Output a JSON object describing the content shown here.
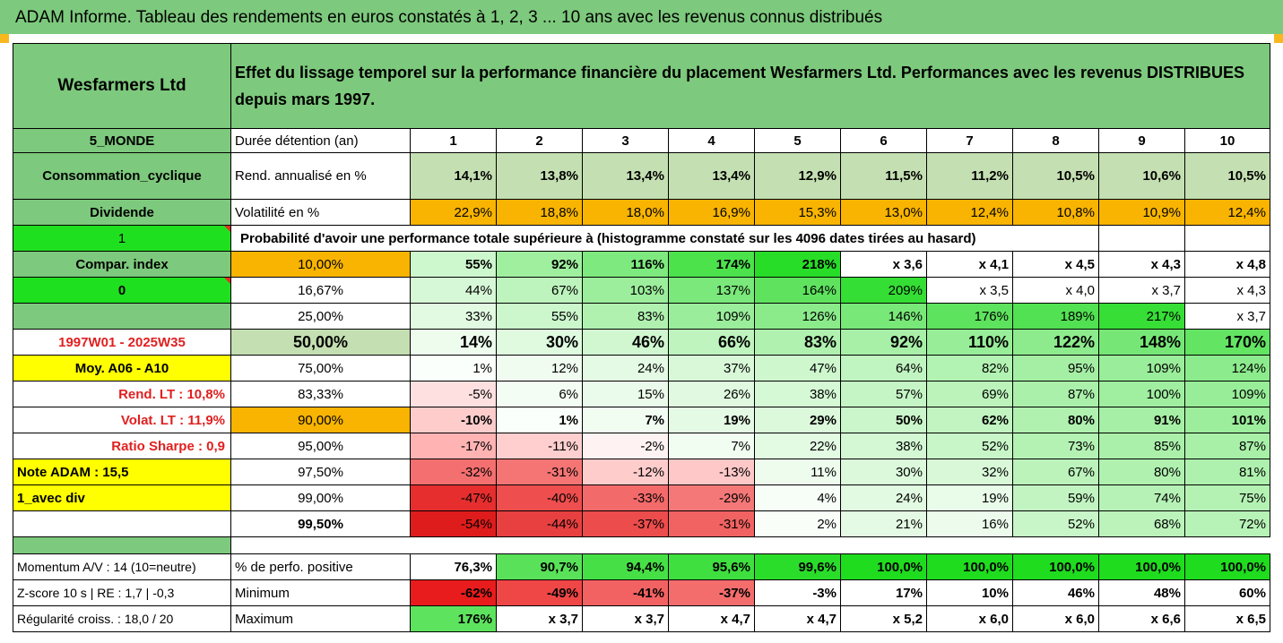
{
  "title": "ADAM Informe. Tableau des rendements en euros constatés à 1, 2, 3 ... 10 ans avec les revenus connus distribués",
  "colors": {
    "green": "#7dc97d",
    "light_green": "#c4dfb1",
    "orange": "#f8b400",
    "yellow": "#ffff00",
    "bright_green": "#1fe01f",
    "red_text": "#e02020"
  },
  "header": {
    "company": "Wesfarmers Ltd",
    "description": "Effet du lissage temporel sur la performance financière du placement Wesfarmers Ltd. Performances avec les revenus DISTRIBUES depuis mars 1997."
  },
  "left": {
    "zone": "5_MONDE",
    "sector": "Consommation_cyclique",
    "dividend": "Dividende",
    "one": "1",
    "compar": "Compar. index",
    "zero": "0",
    "period": "1997W01 - 2025W35",
    "moy": "Moy. A06 - A10",
    "rend_lt": "Rend. LT :   10,8%",
    "volat_lt": "Volat. LT :   11,9%",
    "sharpe": "Ratio Sharpe :    0,9",
    "note": "Note ADAM : 15,5",
    "avec_div": "1_avec div"
  },
  "labels": {
    "duree": "Durée détention (an)",
    "rend": "Rend. annualisé en %",
    "vol": "Volatilité en %",
    "proba": "Probabilité d'avoir une performance totale supérieure à (histogramme constaté sur les 4096 dates tirées au hasard)"
  },
  "years": [
    "1",
    "2",
    "3",
    "4",
    "5",
    "6",
    "7",
    "8",
    "9",
    "10"
  ],
  "rend": [
    "14,1%",
    "13,8%",
    "13,4%",
    "13,4%",
    "12,9%",
    "11,5%",
    "11,2%",
    "10,5%",
    "10,6%",
    "10,5%"
  ],
  "vol": [
    "22,9%",
    "18,8%",
    "18,0%",
    "16,9%",
    "15,3%",
    "13,0%",
    "12,4%",
    "10,8%",
    "10,9%",
    "12,4%"
  ],
  "perf_rows": [
    {
      "p": "10,00%",
      "v": [
        "55%",
        "92%",
        "116%",
        "174%",
        "218%",
        "x 3,6",
        "x 4,1",
        "x 4,5",
        "x 4,3",
        "x 4,8"
      ]
    },
    {
      "p": "16,67%",
      "v": [
        "44%",
        "67%",
        "103%",
        "137%",
        "164%",
        "209%",
        "x 3,5",
        "x 4,0",
        "x 3,7",
        "x 4,3"
      ]
    },
    {
      "p": "25,00%",
      "v": [
        "33%",
        "55%",
        "83%",
        "109%",
        "126%",
        "146%",
        "176%",
        "189%",
        "217%",
        "x 3,7"
      ]
    },
    {
      "p": "50,00%",
      "v": [
        "14%",
        "30%",
        "46%",
        "66%",
        "83%",
        "92%",
        "110%",
        "122%",
        "148%",
        "170%"
      ]
    },
    {
      "p": "75,00%",
      "v": [
        "1%",
        "12%",
        "24%",
        "37%",
        "47%",
        "64%",
        "82%",
        "95%",
        "109%",
        "124%"
      ]
    },
    {
      "p": "83,33%",
      "v": [
        "-5%",
        "6%",
        "15%",
        "26%",
        "38%",
        "57%",
        "69%",
        "87%",
        "100%",
        "109%"
      ]
    },
    {
      "p": "90,00%",
      "v": [
        "-10%",
        "1%",
        "7%",
        "19%",
        "29%",
        "50%",
        "62%",
        "80%",
        "91%",
        "101%"
      ]
    },
    {
      "p": "95,00%",
      "v": [
        "-17%",
        "-11%",
        "-2%",
        "7%",
        "22%",
        "38%",
        "52%",
        "73%",
        "85%",
        "87%"
      ]
    },
    {
      "p": "97,50%",
      "v": [
        "-32%",
        "-31%",
        "-12%",
        "-13%",
        "11%",
        "30%",
        "32%",
        "67%",
        "80%",
        "81%"
      ]
    },
    {
      "p": "99,00%",
      "v": [
        "-47%",
        "-40%",
        "-33%",
        "-29%",
        "4%",
        "24%",
        "19%",
        "59%",
        "74%",
        "75%"
      ]
    },
    {
      "p": "99,50%",
      "v": [
        "-54%",
        "-44%",
        "-37%",
        "-31%",
        "2%",
        "21%",
        "16%",
        "52%",
        "68%",
        "72%"
      ]
    }
  ],
  "bottom": {
    "momentum": "Momentum A/V : 14 (10=neutre)",
    "zscore": "Z-score 10 s  | RE : 1,7 | -0,3",
    "regularite": "Régularité croiss. : 18,0 / 20",
    "pos_label": "% de perfo. positive",
    "min_label": "Minimum",
    "max_label": "Maximum",
    "pos": [
      "76,3%",
      "90,7%",
      "94,4%",
      "95,6%",
      "99,6%",
      "100,0%",
      "100,0%",
      "100,0%",
      "100,0%",
      "100,0%"
    ],
    "min": [
      "-62%",
      "-49%",
      "-41%",
      "-37%",
      "-3%",
      "17%",
      "10%",
      "46%",
      "48%",
      "60%"
    ],
    "max": [
      "176%",
      "x 3,7",
      "x 3,7",
      "x 4,7",
      "x 4,7",
      "x 5,2",
      "x 6,0",
      "x 6,0",
      "x 6,6",
      "x 6,5"
    ]
  }
}
